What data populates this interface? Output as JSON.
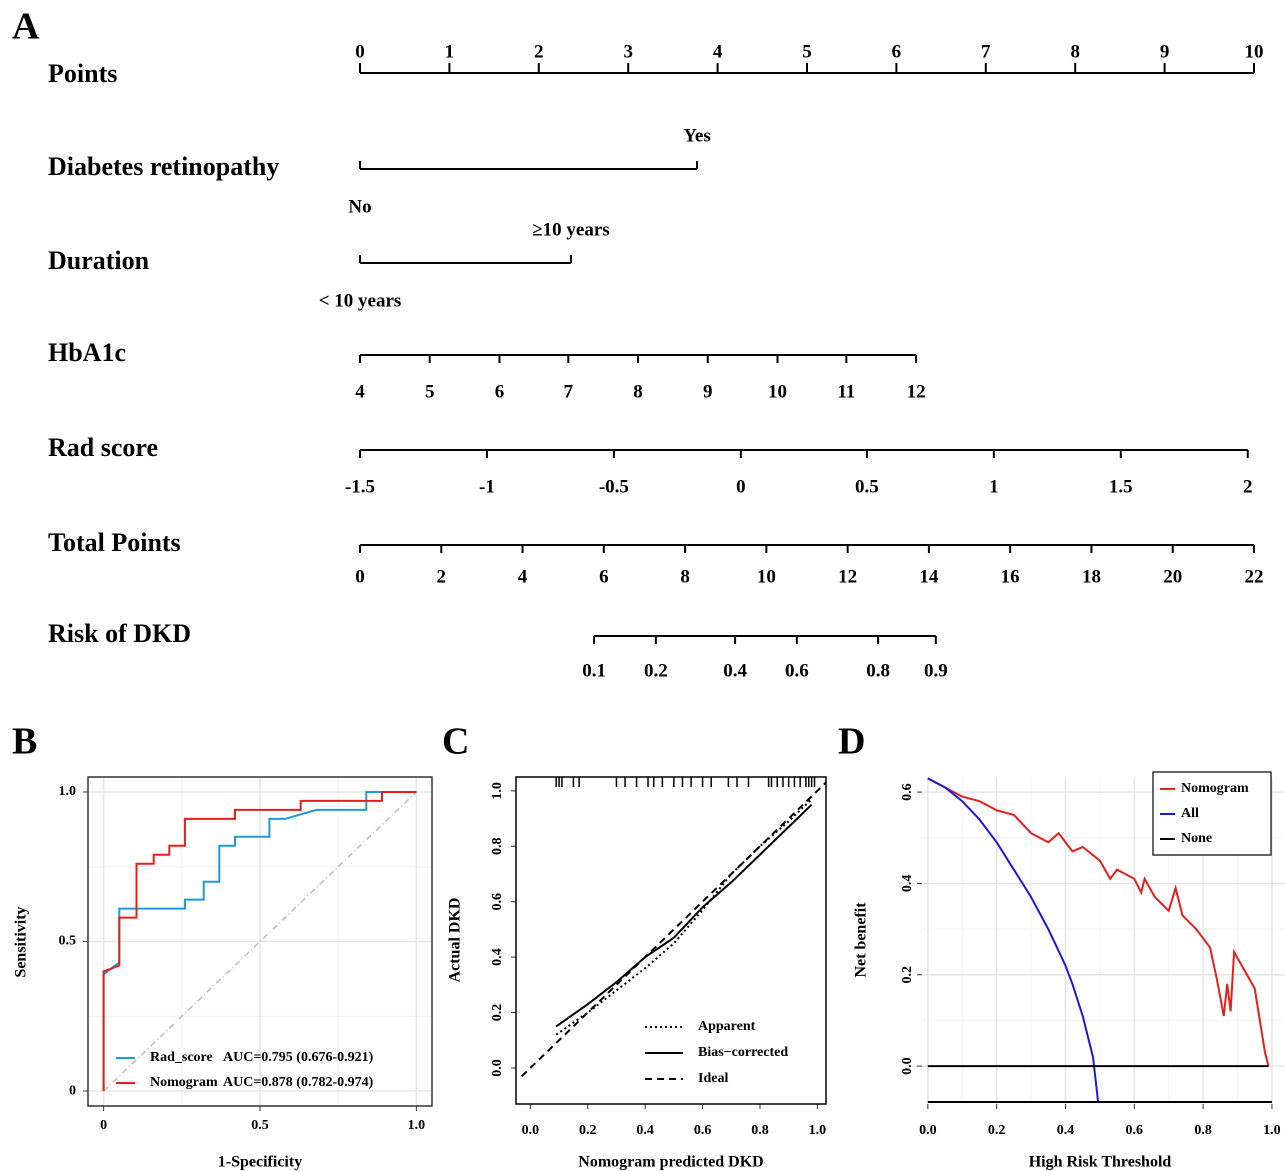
{
  "nomogram": {
    "panel_label": "A",
    "points": {
      "name": "Points",
      "ticks": [
        0,
        1,
        2,
        3,
        4,
        5,
        6,
        7,
        8,
        9,
        10
      ]
    },
    "variables": [
      {
        "name": "Diabetes retinopathy",
        "levels": [
          "No",
          "Yes"
        ],
        "points": [
          0,
          3.77
        ]
      },
      {
        "name": "Duration",
        "levels": [
          "< 10 years",
          "≥10 years"
        ],
        "points": [
          0,
          2.36
        ]
      },
      {
        "name": "HbA1c",
        "levels": [
          4,
          5,
          6,
          7,
          8,
          9,
          10,
          11,
          12
        ],
        "points": [
          0,
          0.78,
          1.56,
          2.33,
          3.11,
          3.89,
          4.67,
          5.44,
          6.22
        ]
      },
      {
        "name": "Rad score",
        "levels": [
          -1.5,
          -1,
          -0.5,
          0,
          0.5,
          1,
          1.5,
          2
        ],
        "points": [
          0,
          1.42,
          2.84,
          4.26,
          5.67,
          7.09,
          8.51,
          9.93
        ]
      }
    ],
    "total_points": {
      "name": "Total Points",
      "ticks": [
        0,
        2,
        4,
        6,
        8,
        10,
        12,
        14,
        16,
        18,
        20,
        22
      ]
    },
    "risk": {
      "name": "Risk of DKD",
      "levels": [
        0.1,
        0.2,
        0.4,
        0.6,
        0.8,
        0.9
      ],
      "total_points": [
        5.76,
        7.28,
        9.23,
        10.75,
        12.75,
        14.17
      ]
    }
  },
  "chart_data": [
    {
      "type": "line",
      "panel_label": "B",
      "x_label": "1-Specificity",
      "y_label": "Sensitivity",
      "xlim": [
        -0.05,
        1.05
      ],
      "ylim": [
        -0.05,
        1.05
      ],
      "xticks": [
        0,
        0.5,
        {
          "value": 1,
          "label": "1.0"
        }
      ],
      "yticks": [
        0,
        0.5,
        {
          "value": 1,
          "label": "1.0"
        }
      ],
      "minor_xticks": [
        0.25,
        0.75
      ],
      "minor_yticks": [
        0.25,
        0.75
      ],
      "grid": true,
      "diagonal": true,
      "legend": "lower left",
      "series": [
        {
          "name": "Rad_score",
          "auc": "AUC=0.795 (0.676-0.921)",
          "color": "#1f9ad6",
          "dash": "solid",
          "x": [
            0,
            0,
            0.05,
            0.05,
            0.26,
            0.26,
            0.32,
            0.32,
            0.37,
            0.37,
            0.42,
            0.42,
            0.53,
            0.53,
            0.58,
            0.68,
            0.84,
            0.84,
            1
          ],
          "values": [
            0,
            0.39,
            0.43,
            0.61,
            0.61,
            0.64,
            0.64,
            0.7,
            0.7,
            0.82,
            0.82,
            0.85,
            0.85,
            0.91,
            0.91,
            0.94,
            0.94,
            1,
            1
          ]
        },
        {
          "name": "Nomogram",
          "auc": "AUC=0.878 (0.782-0.974)",
          "color": "#e3201b",
          "dash": "solid",
          "x": [
            0,
            0,
            0.05,
            0.05,
            0.105,
            0.105,
            0.16,
            0.16,
            0.21,
            0.21,
            0.26,
            0.26,
            0.42,
            0.42,
            0.63,
            0.63,
            0.89,
            0.89,
            1
          ],
          "values": [
            0,
            0.4,
            0.42,
            0.58,
            0.58,
            0.76,
            0.76,
            0.79,
            0.79,
            0.82,
            0.82,
            0.91,
            0.91,
            0.94,
            0.94,
            0.97,
            0.97,
            1,
            1
          ]
        }
      ]
    },
    {
      "type": "line",
      "panel_label": "C",
      "x_label": "Nomogram predicted DKD",
      "y_label": "Actual DKD",
      "xlim": [
        -0.05,
        1.03
      ],
      "ylim": [
        -0.13,
        1.05
      ],
      "xticks": [
        {
          "value": 0,
          "label": "0.0"
        },
        0.2,
        0.4,
        0.6,
        0.8,
        {
          "value": 1,
          "label": "1.0"
        }
      ],
      "yticks": [
        {
          "value": 0,
          "label": "0.0"
        },
        0.2,
        0.4,
        0.6,
        0.8,
        {
          "value": 1,
          "label": "1.0"
        }
      ],
      "grid": false,
      "legend": "lower right",
      "rug": [
        0.09,
        0.1,
        0.11,
        0.15,
        0.17,
        0.3,
        0.33,
        0.37,
        0.41,
        0.43,
        0.46,
        0.5,
        0.53,
        0.56,
        0.6,
        0.63,
        0.69,
        0.72,
        0.76,
        0.83,
        0.84,
        0.86,
        0.88,
        0.9,
        0.92,
        0.94,
        0.96,
        0.97,
        0.98,
        0.99
      ],
      "series": [
        {
          "name": "Apparent",
          "color": "#000000",
          "dash": "dotted",
          "x": [
            0.09,
            0.2,
            0.3,
            0.4,
            0.5,
            0.6,
            0.7,
            0.8,
            0.9,
            0.98
          ],
          "values": [
            0.12,
            0.2,
            0.28,
            0.36,
            0.45,
            0.57,
            0.7,
            0.8,
            0.89,
            0.97
          ]
        },
        {
          "name": "Bias−corrected",
          "color": "#000000",
          "dash": "solid",
          "x": [
            0.09,
            0.2,
            0.3,
            0.4,
            0.5,
            0.6,
            0.7,
            0.8,
            0.9,
            0.98
          ],
          "values": [
            0.15,
            0.23,
            0.31,
            0.4,
            0.47,
            0.58,
            0.67,
            0.77,
            0.87,
            0.95
          ]
        },
        {
          "name": "Ideal",
          "color": "#000000",
          "dash": "dashed",
          "x": [
            -0.03,
            1.03
          ],
          "values": [
            -0.03,
            1.03
          ]
        }
      ]
    },
    {
      "type": "line",
      "panel_label": "D",
      "x_label": "High Risk Threshold",
      "y_label": "Net benefit",
      "xlim": [
        -0.017,
        1.038
      ],
      "ylim": [
        -0.083,
        0.633
      ],
      "xticks": [
        {
          "value": 0,
          "label": "0.0"
        },
        0.2,
        0.4,
        0.6,
        0.8,
        {
          "value": 1,
          "label": "1.0"
        }
      ],
      "yticks": [
        {
          "value": 0,
          "label": "0.0"
        },
        0.2,
        0.4,
        0.6
      ],
      "minor_xticks": [
        0.1,
        0.3,
        0.5,
        0.7,
        0.9
      ],
      "minor_yticks": [
        0.1,
        0.3,
        0.5
      ],
      "grid": true,
      "legend": "upper right",
      "series": [
        {
          "name": "Nomogram",
          "color": "#e3201b",
          "dash": "solid",
          "x": [
            0,
            0.05,
            0.1,
            0.15,
            0.2,
            0.25,
            0.3,
            0.35,
            0.38,
            0.42,
            0.45,
            0.5,
            0.53,
            0.55,
            0.6,
            0.62,
            0.63,
            0.66,
            0.7,
            0.72,
            0.74,
            0.78,
            0.82,
            0.84,
            0.86,
            0.87,
            0.88,
            0.89,
            0.92,
            0.95,
            0.98,
            0.99
          ],
          "values": [
            0.63,
            0.61,
            0.59,
            0.58,
            0.56,
            0.55,
            0.51,
            0.49,
            0.51,
            0.47,
            0.48,
            0.45,
            0.41,
            0.43,
            0.41,
            0.38,
            0.41,
            0.37,
            0.34,
            0.39,
            0.33,
            0.3,
            0.26,
            0.19,
            0.11,
            0.18,
            0.12,
            0.25,
            0.21,
            0.17,
            0.03,
            0
          ]
        },
        {
          "name": "All",
          "color": "#1a1ad6",
          "dash": "solid",
          "x": [
            0,
            0.05,
            0.1,
            0.15,
            0.2,
            0.25,
            0.3,
            0.35,
            0.4,
            0.42,
            0.45,
            0.48,
            0.495
          ],
          "values": [
            0.63,
            0.61,
            0.58,
            0.54,
            0.49,
            0.43,
            0.37,
            0.3,
            0.22,
            0.18,
            0.11,
            0.02,
            -0.08
          ]
        },
        {
          "name": "None",
          "color": "#000000",
          "dash": "solid",
          "x": [
            0,
            0.99
          ],
          "values": [
            0,
            0
          ]
        }
      ]
    }
  ]
}
